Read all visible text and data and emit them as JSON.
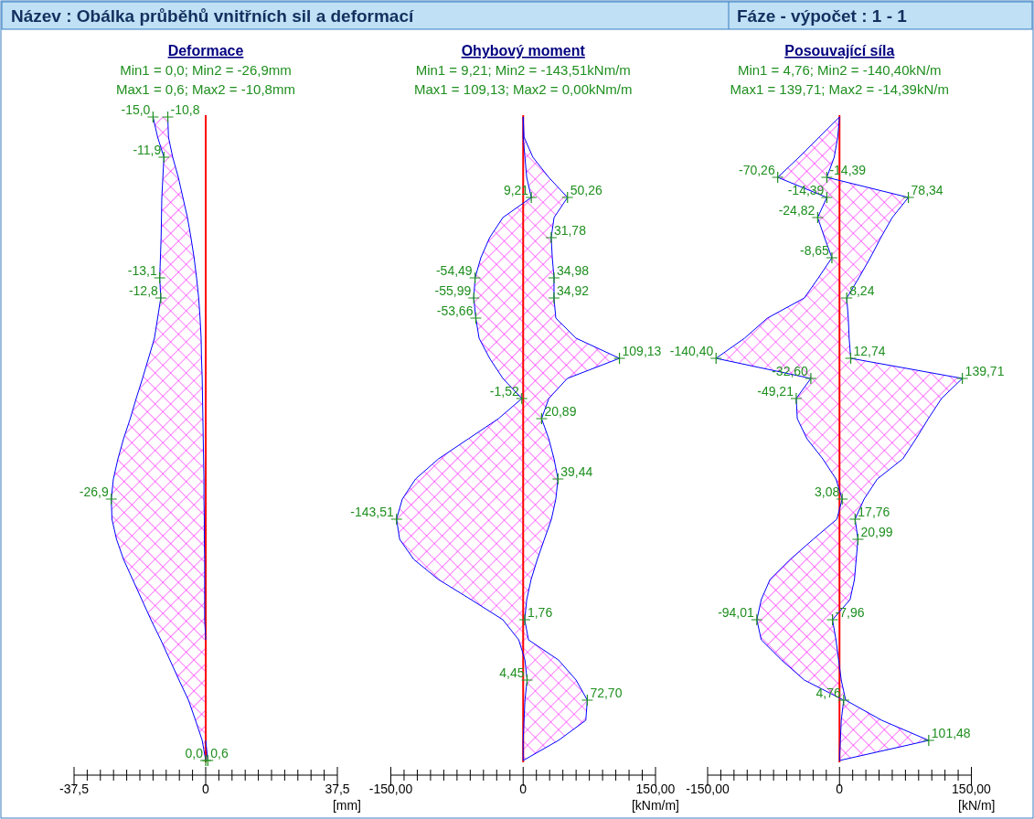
{
  "chart_data": [
    {
      "type": "other",
      "title": "Název : Obálka průběhů vnitřních sil a deformací",
      "subtitle": "Fáze - výpočet : 1 - 1"
    },
    {
      "type": "line",
      "orientation": "horizontal",
      "title": "Deformace",
      "subtitle": "Min1 = 0,0; Min2 = -26,9mm\nMax1 = 0,6; Max2 = -10,8mm",
      "xlabel": "[mm]",
      "tick_labels": "x",
      "categories": [
        null,
        null,
        null,
        null,
        null,
        null,
        null,
        null,
        null,
        null,
        null,
        null,
        null,
        null,
        null,
        null,
        null,
        null,
        null,
        null,
        null,
        null,
        null,
        null,
        null,
        null,
        null,
        null,
        null,
        null,
        null,
        null,
        null
      ],
      "xlim": [
        -37.5,
        37.5
      ],
      "xticks": [
        {
          "value": -37.5,
          "label": "-37,5"
        },
        {
          "value": -33.75,
          "label": null
        },
        {
          "value": -30,
          "label": null
        },
        {
          "value": -26.25,
          "label": null
        },
        {
          "value": -22.5,
          "label": null
        },
        {
          "value": -18.75,
          "label": null
        },
        {
          "value": -15,
          "label": null
        },
        {
          "value": -11.25,
          "label": null
        },
        {
          "value": -7.5,
          "label": null
        },
        {
          "value": -3.75,
          "label": null
        },
        {
          "value": 0,
          "label": "0"
        },
        {
          "value": 3.75,
          "label": null
        },
        {
          "value": 7.5,
          "label": null
        },
        {
          "value": 11.25,
          "label": null
        },
        {
          "value": 15,
          "label": null
        },
        {
          "value": 18.75,
          "label": null
        },
        {
          "value": 22.5,
          "label": null
        },
        {
          "value": 26.25,
          "label": null
        },
        {
          "value": 30,
          "label": null
        },
        {
          "value": 33.75,
          "label": null
        },
        {
          "value": 37.5,
          "label": "37,5"
        }
      ],
      "series": [
        {
          "color": "#0000ff",
          "values": [
            -15.0,
            -13.7,
            -11.9,
            -12.2,
            -12.5,
            -12.6,
            -12.7,
            -12.9,
            -13.1,
            -12.8,
            -13.7,
            -14.6,
            -16.3,
            -18.0,
            -19.8,
            -21.5,
            -23.4,
            -25.0,
            -26.3,
            -26.9,
            -26.7,
            -25.4,
            -23.4,
            -20.8,
            -18.2,
            -15.6,
            -12.8,
            -10.2,
            -7.6,
            -4.9,
            -2.9,
            -1.0,
            0.0
          ],
          "value_labels": [
            "-15,0",
            null,
            "-11,9",
            null,
            null,
            null,
            null,
            null,
            "-13,1",
            "-12,8",
            null,
            null,
            null,
            null,
            null,
            null,
            null,
            null,
            null,
            "-26,9",
            null,
            null,
            null,
            null,
            null,
            null,
            null,
            null,
            null,
            null,
            null,
            null,
            "0,0"
          ],
          "lower": [
            -15.0,
            -13.7,
            -11.9,
            -12.2,
            -12.5,
            -12.6,
            -12.7,
            -12.9,
            -13.1,
            -12.8,
            -13.7,
            -14.6,
            -16.3,
            -18.0,
            -19.8,
            -21.5,
            -23.4,
            -25.0,
            -26.3,
            -26.9,
            -26.7,
            -25.4,
            -23.4,
            -20.8,
            -18.2,
            -15.6,
            -12.8,
            -10.2,
            -7.6,
            -4.9,
            -2.9,
            -1.0,
            0.0
          ],
          "upper": [
            -10.8,
            -10.6,
            -9.4,
            -7.8,
            -6.5,
            -5.2,
            -4.2,
            -3.3,
            -2.6,
            -2.0,
            -1.6,
            -1.3,
            -1.2,
            -1.0,
            -0.9,
            -0.8,
            -0.7,
            -0.6,
            -0.5,
            -0.5,
            -0.4,
            -0.4,
            -0.3,
            -0.3,
            -0.3,
            -0.3,
            0.0,
            0.0,
            0.0,
            0.0,
            0.0,
            0.0,
            0.6
          ]
        },
        {
          "color": "#0000ff",
          "values": [
            -10.8,
            -10.6,
            -9.4,
            -7.8,
            -6.5,
            -5.2,
            -4.2,
            -3.3,
            -2.6,
            -2.0,
            -1.6,
            -1.3,
            -1.2,
            -1.0,
            -0.9,
            -0.8,
            -0.7,
            -0.6,
            -0.5,
            -0.5,
            -0.4,
            -0.4,
            -0.3,
            -0.3,
            -0.3,
            -0.3,
            0.0,
            null,
            null,
            null,
            null,
            0.0,
            0.6
          ],
          "value_labels": [
            "-10,8",
            null,
            null,
            null,
            null,
            null,
            null,
            null,
            null,
            null,
            null,
            null,
            null,
            null,
            null,
            null,
            null,
            null,
            null,
            null,
            null,
            null,
            null,
            null,
            null,
            null,
            null,
            null,
            null,
            null,
            null,
            null,
            "0,6"
          ]
        }
      ],
      "ref_lines": [
        {
          "axis": "x",
          "value": 0,
          "color": "#ff0000"
        }
      ]
    },
    {
      "type": "line",
      "orientation": "horizontal",
      "title": "Ohybový moment",
      "subtitle": "Min1 = 9,21; Min2 = -143,51kNm/m\nMax1 = 109,13; Max2 = 0,00kNm/m",
      "xlabel": "[kNm/m]",
      "tick_labels": "x",
      "categories": [
        null,
        null,
        null,
        null,
        null,
        null,
        null,
        null,
        null,
        null,
        null,
        null,
        null,
        null,
        null,
        null,
        null,
        null,
        null,
        null,
        null,
        null,
        null,
        null,
        null,
        null,
        null,
        null,
        null,
        null,
        null,
        null,
        null
      ],
      "xlim": [
        -150,
        150
      ],
      "xticks": [
        {
          "value": -150,
          "label": "-150,00"
        },
        {
          "value": -135,
          "label": null
        },
        {
          "value": -120,
          "label": null
        },
        {
          "value": -105,
          "label": null
        },
        {
          "value": -90,
          "label": null
        },
        {
          "value": -75,
          "label": null
        },
        {
          "value": -60,
          "label": null
        },
        {
          "value": -45,
          "label": null
        },
        {
          "value": -30,
          "label": null
        },
        {
          "value": -15,
          "label": null
        },
        {
          "value": 0,
          "label": "0"
        },
        {
          "value": 15,
          "label": null
        },
        {
          "value": 30,
          "label": null
        },
        {
          "value": 45,
          "label": null
        },
        {
          "value": 60,
          "label": null
        },
        {
          "value": 75,
          "label": null
        },
        {
          "value": 90,
          "label": null
        },
        {
          "value": 105,
          "label": null
        },
        {
          "value": 120,
          "label": null
        },
        {
          "value": 135,
          "label": null
        },
        {
          "value": 150,
          "label": "150,00"
        }
      ],
      "series": [
        {
          "color": "#0000ff",
          "values": [
            0,
            0,
            2,
            4,
            9.21,
            -23,
            -38,
            -48,
            -54.49,
            -55.99,
            -53.66,
            -50,
            -38,
            -23,
            -1.52,
            -28,
            -62,
            -96,
            -122,
            -137,
            -143.51,
            -140,
            -124,
            -96,
            -59,
            -23,
            -5,
            2,
            4.45,
            2,
            1,
            0,
            0
          ],
          "value_labels": [
            null,
            null,
            null,
            null,
            "9,21",
            null,
            null,
            null,
            "-54,49",
            "-55,99",
            "-53,66",
            null,
            null,
            null,
            "-1,52",
            null,
            null,
            null,
            null,
            null,
            "-143,51",
            null,
            null,
            null,
            null,
            null,
            null,
            null,
            "4,45",
            null,
            null,
            null,
            null
          ],
          "lower": [
            0,
            0,
            2,
            4,
            9.21,
            -23,
            -38,
            -48,
            -54.49,
            -55.99,
            -53.66,
            -50,
            -38,
            -23,
            -1.52,
            -28,
            -62,
            -96,
            -122,
            -137,
            -143.51,
            -140,
            -124,
            -96,
            -59,
            -23,
            -5,
            2,
            4.45,
            2,
            1,
            0,
            0
          ],
          "upper": [
            0,
            1,
            11,
            29,
            50.26,
            35,
            31.78,
            33,
            34.98,
            34.92,
            37,
            60,
            109.13,
            50,
            29,
            20.89,
            29,
            35,
            39.44,
            37,
            32,
            24,
            16,
            9,
            4,
            1.76,
            6,
            40,
            60,
            72.7,
            71,
            40,
            0
          ]
        },
        {
          "color": "#0000ff",
          "values": [
            0,
            1,
            11,
            29,
            50.26,
            35,
            31.78,
            33,
            34.98,
            34.92,
            37,
            60,
            109.13,
            50,
            29,
            20.89,
            29,
            35,
            39.44,
            37,
            32,
            24,
            16,
            9,
            4,
            1.76,
            6,
            40,
            60,
            72.7,
            71,
            40,
            0
          ],
          "value_labels": [
            null,
            null,
            null,
            null,
            "50,26",
            null,
            "31,78",
            null,
            "34,98",
            "34,92",
            null,
            null,
            "109,13",
            null,
            null,
            "20,89",
            null,
            null,
            "39,44",
            null,
            null,
            null,
            null,
            null,
            null,
            "1,76",
            null,
            null,
            null,
            "72,70",
            null,
            null,
            null
          ]
        }
      ],
      "ref_lines": [
        {
          "axis": "x",
          "value": 0,
          "color": "#ff0000"
        }
      ]
    },
    {
      "type": "line",
      "orientation": "horizontal",
      "title": "Posouvající síla",
      "subtitle": "Min1 = 4,76; Min2 = -140,40kN/m\nMax1 = 139,71; Max2 = -14,39kN/m",
      "xlabel": "[kN/m]",
      "tick_labels": "x",
      "categories": [
        null,
        null,
        null,
        null,
        null,
        null,
        null,
        null,
        null,
        null,
        null,
        null,
        null,
        null,
        null,
        null,
        null,
        null,
        null,
        null,
        null,
        null,
        null,
        null,
        null,
        null,
        null,
        null,
        null,
        null,
        null,
        null,
        null
      ],
      "xlim": [
        -150,
        150
      ],
      "xticks": [
        {
          "value": -150,
          "label": "-150,00"
        },
        {
          "value": -135,
          "label": null
        },
        {
          "value": -120,
          "label": null
        },
        {
          "value": -105,
          "label": null
        },
        {
          "value": -90,
          "label": null
        },
        {
          "value": -75,
          "label": null
        },
        {
          "value": -60,
          "label": null
        },
        {
          "value": -45,
          "label": null
        },
        {
          "value": -30,
          "label": null
        },
        {
          "value": -15,
          "label": null
        },
        {
          "value": 0,
          "label": "0"
        },
        {
          "value": 15,
          "label": null
        },
        {
          "value": 30,
          "label": null
        },
        {
          "value": 45,
          "label": null
        },
        {
          "value": 60,
          "label": null
        },
        {
          "value": 75,
          "label": null
        },
        {
          "value": 90,
          "label": null
        },
        {
          "value": 105,
          "label": null
        },
        {
          "value": 120,
          "label": null
        },
        {
          "value": 135,
          "label": null
        },
        {
          "value": 150,
          "label": "150,00"
        }
      ],
      "series": [
        {
          "color": "#0000ff",
          "values": [
            0,
            -23,
            -46,
            -70.26,
            -14.39,
            -24.82,
            -17,
            -8.65,
            -24,
            -40,
            -82,
            -108,
            -140.4,
            -32.6,
            -49.21,
            -48,
            -37,
            -19,
            -4,
            3.08,
            -3,
            -30,
            -56,
            -79,
            -89,
            -94.01,
            -89,
            -66,
            -40,
            4.76,
            2,
            1,
            0
          ],
          "value_labels": [
            null,
            null,
            null,
            "-70,26",
            "-14,39",
            "-24,82",
            null,
            "-8,65",
            null,
            null,
            null,
            null,
            "-140,40",
            "-32,60",
            "-49,21",
            null,
            null,
            null,
            null,
            "3,08",
            null,
            null,
            null,
            null,
            null,
            "-94,01",
            null,
            null,
            null,
            "4,76",
            null,
            null,
            null
          ],
          "lower": [
            0,
            -23,
            -46,
            -70.26,
            -14.39,
            -24.82,
            -17,
            -8.65,
            -24,
            -40,
            -82,
            -108,
            -140.4,
            -32.6,
            -49.21,
            -48,
            -37,
            -19,
            -4,
            3.08,
            -3,
            -30,
            -56,
            -79,
            -89,
            -94.01,
            -89,
            -66,
            -40,
            4.76,
            2,
            1,
            0
          ],
          "upper": [
            0,
            -2,
            -6,
            -14.39,
            78.34,
            60,
            47,
            35,
            22,
            8.24,
            10,
            11,
            12.74,
            139.71,
            116,
            101,
            87,
            72,
            43,
            28,
            17.76,
            20.99,
            19,
            17,
            12,
            -7.96,
            -4,
            -1,
            2,
            7,
            48,
            101.48,
            0
          ]
        },
        {
          "color": "#0000ff",
          "values": [
            0,
            -2,
            -6,
            -14.39,
            78.34,
            60,
            47,
            35,
            22,
            8.24,
            10,
            11,
            12.74,
            139.71,
            116,
            101,
            87,
            72,
            43,
            28,
            17.76,
            20.99,
            19,
            17,
            12,
            -7.96,
            -4,
            -1,
            2,
            7,
            48,
            101.48,
            0
          ],
          "value_labels": [
            null,
            null,
            null,
            "-14,39",
            "78,34",
            null,
            null,
            null,
            null,
            "8,24",
            null,
            null,
            "12,74",
            "139,71",
            null,
            null,
            null,
            null,
            null,
            null,
            "17,76",
            "20,99",
            null,
            null,
            null,
            "-7,96",
            null,
            null,
            null,
            null,
            null,
            "101,48",
            null
          ]
        }
      ],
      "ref_lines": [
        {
          "axis": "x",
          "value": 0,
          "color": "#ff0000"
        }
      ]
    }
  ]
}
